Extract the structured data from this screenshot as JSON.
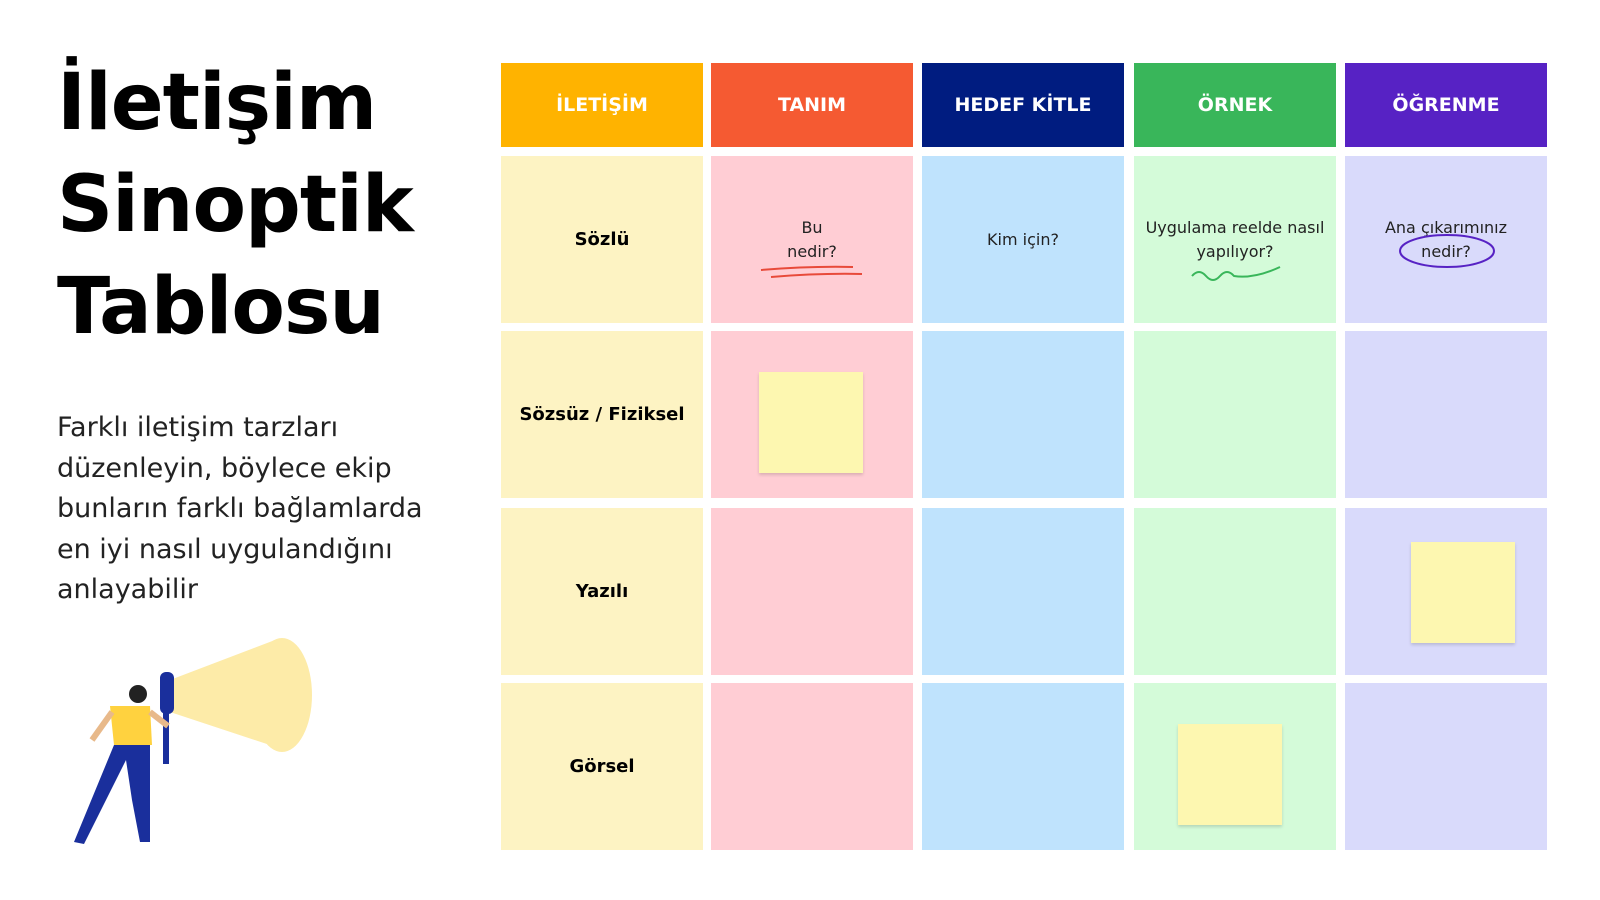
{
  "header": {
    "title_lines": [
      "İletişim",
      "Sinoptik",
      "Tablosu"
    ],
    "description_lines": [
      "Farklı iletişim tarzları",
      "düzenleyin, böylece ekip",
      "bunların farklı bağlamlarda",
      "en iyi nasıl uygulandığını",
      "anlayabilir"
    ]
  },
  "table": {
    "columns": [
      {
        "label": "İLETİŞİM",
        "color": "#FFB300",
        "cell_color": "#FDF3C3"
      },
      {
        "label": "TANIM",
        "color": "#F55A32",
        "cell_color": "#FFCDD4"
      },
      {
        "label": "HEDEF KİTLE",
        "color": "#001C80",
        "cell_color": "#BFE3FD"
      },
      {
        "label": "ÖRNEK",
        "color": "#39B65A",
        "cell_color": "#D4FBD9"
      },
      {
        "label": "ÖĞRENME",
        "color": "#5722C4",
        "cell_color": "#D9DAFB"
      }
    ],
    "rows": [
      {
        "label": "Sözlü",
        "cells": [
          [
            "Bu",
            "nedir?"
          ],
          [
            "Kim için?"
          ],
          [
            "Uygulama reelde nasıl",
            "yapılıyor?"
          ],
          [
            "Ana çıkarımınız",
            "nedir?"
          ]
        ]
      },
      {
        "label": "Sözsüz / Fiziksel"
      },
      {
        "label": "Yazılı"
      },
      {
        "label": "Görsel"
      }
    ]
  }
}
